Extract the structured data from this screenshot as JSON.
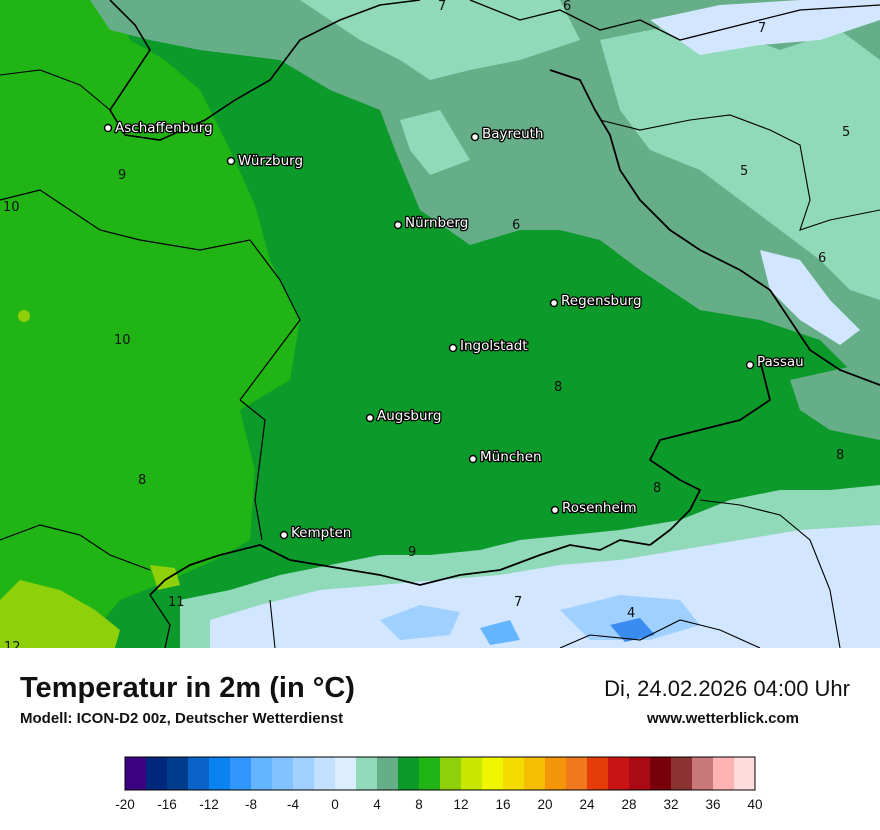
{
  "map": {
    "cities": [
      {
        "name": "Aschaffenburg"
      },
      {
        "name": "Würzburg"
      },
      {
        "name": "Bayreuth"
      },
      {
        "name": "Nürnberg"
      },
      {
        "name": "Regensburg"
      },
      {
        "name": "Ingolstadt"
      },
      {
        "name": "Passau"
      },
      {
        "name": "Augsburg"
      },
      {
        "name": "München"
      },
      {
        "name": "Rosenheim"
      },
      {
        "name": "Kempten"
      }
    ],
    "isolines": [
      "7",
      "6",
      "7",
      "5",
      "9",
      "5",
      "10",
      "6",
      "6",
      "10",
      "8",
      "8",
      "8",
      "8",
      "9",
      "7",
      "11",
      "4",
      "12"
    ],
    "colors": {
      "t0_2": "#d2e6ff",
      "t2_4": "#90dab9",
      "t4_6": "#66ae88",
      "t6_8": "#0c9a2a",
      "t8_10": "#20b414",
      "t10_12": "#8ed00a",
      "t_minus": "#3a8cf0",
      "border": "#000000"
    }
  },
  "footer": {
    "title": "Temperatur in 2m (in °C)",
    "model": "Modell: ICON-D2 00z, Deutscher Wetterdienst",
    "datetime": "Di, 24.02.2026 04:00 Uhr",
    "website": "www.wetterblick.com"
  },
  "legend": {
    "colors": [
      "#3c0082",
      "#00287d",
      "#003c8c",
      "#0a64c8",
      "#0a82f0",
      "#3296ff",
      "#64b4ff",
      "#82c3ff",
      "#a0d0ff",
      "#c3e1ff",
      "#dcedff",
      "#90dab9",
      "#66ae88",
      "#0c9a2a",
      "#20b414",
      "#8ed00a",
      "#c8e600",
      "#f0f500",
      "#f5dc00",
      "#f5be00",
      "#f5960a",
      "#f0781e",
      "#e63c0a",
      "#c81414",
      "#aa0a14",
      "#78000a",
      "#8c3232",
      "#c87878",
      "#ffb4b4",
      "#ffdcdc"
    ],
    "ticks": [
      "-20",
      "-16",
      "-12",
      "-8",
      "-4",
      "0",
      "4",
      "8",
      "12",
      "16",
      "20",
      "24",
      "28",
      "32",
      "36",
      "40"
    ],
    "min": -20,
    "max": 40
  }
}
